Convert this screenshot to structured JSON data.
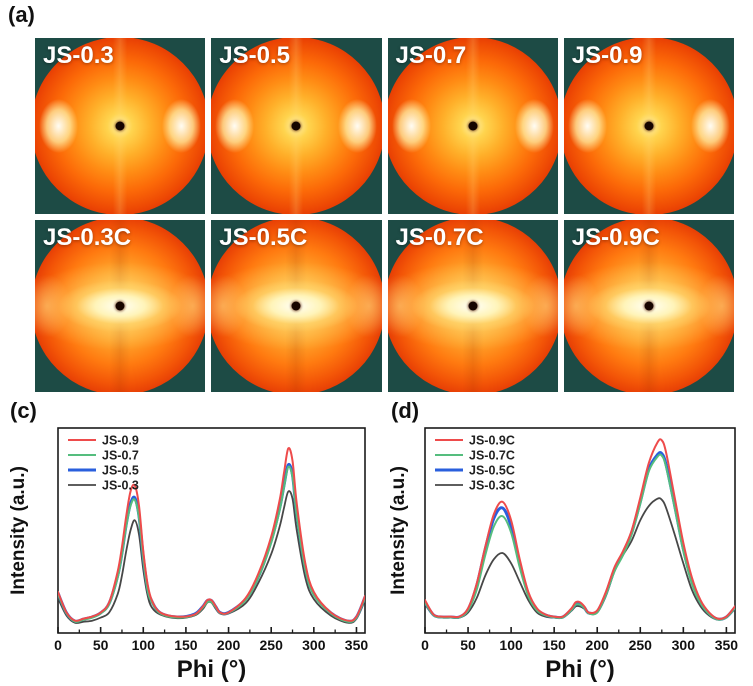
{
  "figure": {
    "panel_a_label": "(a)",
    "panel_c_label": "(c)",
    "panel_d_label": "(d)"
  },
  "panel_a": {
    "background_color": "#1d4b45",
    "tiles": [
      {
        "label": "JS-0.3",
        "pattern": "equatorial-spots"
      },
      {
        "label": "JS-0.5",
        "pattern": "equatorial-spots"
      },
      {
        "label": "JS-0.7",
        "pattern": "equatorial-spots"
      },
      {
        "label": "JS-0.9",
        "pattern": "equatorial-spots"
      },
      {
        "label": "JS-0.3C",
        "pattern": "horizontal-band"
      },
      {
        "label": "JS-0.5C",
        "pattern": "horizontal-band"
      },
      {
        "label": "JS-0.7C",
        "pattern": "horizontal-band"
      },
      {
        "label": "JS-0.9C",
        "pattern": "horizontal-band"
      }
    ]
  },
  "chart_data": [
    {
      "type": "line",
      "panel": "c",
      "xlabel": "Phi (°)",
      "ylabel": "Intensity (a.u.)",
      "xlim": [
        0,
        360
      ],
      "ylim": [
        0,
        1
      ],
      "xticks": [
        0,
        50,
        100,
        150,
        200,
        250,
        300,
        350
      ],
      "minor_tick_step": 25,
      "grid": false,
      "legend_position": "top-left",
      "x": [
        0,
        10,
        20,
        30,
        40,
        50,
        60,
        70,
        75,
        80,
        85,
        90,
        95,
        100,
        105,
        110,
        120,
        140,
        160,
        170,
        175,
        180,
        185,
        190,
        200,
        220,
        235,
        250,
        260,
        265,
        270,
        275,
        280,
        290,
        300,
        320,
        340,
        350,
        360
      ],
      "series": [
        {
          "name": "JS-0.9",
          "color": "#ee4b4b",
          "line_width": 2,
          "values": [
            0.2,
            0.1,
            0.06,
            0.07,
            0.08,
            0.1,
            0.15,
            0.3,
            0.42,
            0.57,
            0.69,
            0.72,
            0.62,
            0.4,
            0.24,
            0.16,
            0.1,
            0.08,
            0.09,
            0.13,
            0.16,
            0.16,
            0.13,
            0.1,
            0.1,
            0.17,
            0.29,
            0.47,
            0.65,
            0.78,
            0.9,
            0.84,
            0.63,
            0.34,
            0.2,
            0.1,
            0.06,
            0.08,
            0.18
          ]
        },
        {
          "name": "JS-0.7",
          "color": "#55bd7e",
          "line_width": 2,
          "values": [
            0.19,
            0.095,
            0.055,
            0.065,
            0.075,
            0.095,
            0.14,
            0.27,
            0.38,
            0.52,
            0.62,
            0.65,
            0.56,
            0.36,
            0.21,
            0.15,
            0.095,
            0.075,
            0.088,
            0.125,
            0.15,
            0.15,
            0.125,
            0.098,
            0.098,
            0.16,
            0.27,
            0.44,
            0.6,
            0.71,
            0.81,
            0.76,
            0.57,
            0.31,
            0.185,
            0.095,
            0.055,
            0.075,
            0.17
          ]
        },
        {
          "name": "JS-0.5",
          "color": "#2a5fdd",
          "line_width": 3,
          "values": [
            0.195,
            0.098,
            0.058,
            0.068,
            0.078,
            0.098,
            0.145,
            0.28,
            0.39,
            0.53,
            0.63,
            0.66,
            0.57,
            0.37,
            0.22,
            0.155,
            0.098,
            0.078,
            0.092,
            0.13,
            0.158,
            0.158,
            0.128,
            0.1,
            0.1,
            0.165,
            0.275,
            0.45,
            0.61,
            0.72,
            0.82,
            0.77,
            0.58,
            0.32,
            0.19,
            0.098,
            0.058,
            0.078,
            0.175
          ]
        },
        {
          "name": "JS-0.3",
          "color": "#474747",
          "line_width": 1.8,
          "values": [
            0.17,
            0.085,
            0.05,
            0.055,
            0.06,
            0.075,
            0.1,
            0.19,
            0.28,
            0.4,
            0.5,
            0.55,
            0.48,
            0.31,
            0.185,
            0.125,
            0.09,
            0.072,
            0.085,
            0.118,
            0.148,
            0.148,
            0.118,
            0.095,
            0.095,
            0.145,
            0.245,
            0.385,
            0.52,
            0.61,
            0.69,
            0.655,
            0.5,
            0.27,
            0.165,
            0.085,
            0.05,
            0.07,
            0.16
          ]
        }
      ]
    },
    {
      "type": "line",
      "panel": "d",
      "xlabel": "Phi (°)",
      "ylabel": "Intensity (a.u.)",
      "xlim": [
        0,
        360
      ],
      "ylim": [
        0,
        1
      ],
      "xticks": [
        0,
        50,
        100,
        150,
        200,
        250,
        300,
        350
      ],
      "minor_tick_step": 25,
      "grid": false,
      "legend_position": "top-left",
      "x": [
        0,
        10,
        20,
        30,
        40,
        50,
        60,
        70,
        80,
        90,
        100,
        110,
        120,
        130,
        140,
        150,
        160,
        170,
        175,
        180,
        185,
        190,
        200,
        210,
        220,
        230,
        240,
        250,
        260,
        270,
        275,
        280,
        290,
        300,
        310,
        320,
        330,
        340,
        350,
        360
      ],
      "series": [
        {
          "name": "JS-0.9C",
          "color": "#ee4b4b",
          "line_width": 2,
          "values": [
            0.16,
            0.09,
            0.08,
            0.08,
            0.08,
            0.12,
            0.24,
            0.42,
            0.58,
            0.64,
            0.55,
            0.36,
            0.2,
            0.12,
            0.09,
            0.08,
            0.08,
            0.12,
            0.15,
            0.15,
            0.13,
            0.1,
            0.11,
            0.2,
            0.32,
            0.4,
            0.5,
            0.66,
            0.83,
            0.93,
            0.94,
            0.88,
            0.66,
            0.44,
            0.27,
            0.16,
            0.1,
            0.07,
            0.08,
            0.13
          ]
        },
        {
          "name": "JS-0.7C",
          "color": "#55bd7e",
          "line_width": 2,
          "values": [
            0.148,
            0.086,
            0.076,
            0.076,
            0.076,
            0.11,
            0.21,
            0.38,
            0.52,
            0.57,
            0.49,
            0.32,
            0.18,
            0.11,
            0.086,
            0.076,
            0.076,
            0.112,
            0.138,
            0.138,
            0.122,
            0.096,
            0.1,
            0.185,
            0.3,
            0.38,
            0.48,
            0.63,
            0.79,
            0.86,
            0.865,
            0.81,
            0.61,
            0.4,
            0.24,
            0.145,
            0.092,
            0.066,
            0.076,
            0.122
          ]
        },
        {
          "name": "JS-0.5C",
          "color": "#2a5fdd",
          "line_width": 3,
          "values": [
            0.15,
            0.088,
            0.078,
            0.078,
            0.078,
            0.115,
            0.23,
            0.41,
            0.56,
            0.61,
            0.52,
            0.34,
            0.19,
            0.115,
            0.088,
            0.078,
            0.078,
            0.115,
            0.14,
            0.14,
            0.125,
            0.098,
            0.105,
            0.19,
            0.31,
            0.39,
            0.49,
            0.64,
            0.8,
            0.87,
            0.875,
            0.82,
            0.62,
            0.41,
            0.25,
            0.15,
            0.095,
            0.068,
            0.078,
            0.125
          ]
        },
        {
          "name": "JS-0.3C",
          "color": "#474747",
          "line_width": 1.8,
          "values": [
            0.14,
            0.085,
            0.075,
            0.075,
            0.075,
            0.1,
            0.17,
            0.28,
            0.36,
            0.39,
            0.34,
            0.25,
            0.16,
            0.1,
            0.08,
            0.075,
            0.075,
            0.108,
            0.13,
            0.13,
            0.118,
            0.095,
            0.1,
            0.18,
            0.3,
            0.38,
            0.45,
            0.55,
            0.62,
            0.655,
            0.65,
            0.61,
            0.48,
            0.34,
            0.21,
            0.13,
            0.085,
            0.065,
            0.075,
            0.118
          ]
        }
      ]
    }
  ]
}
